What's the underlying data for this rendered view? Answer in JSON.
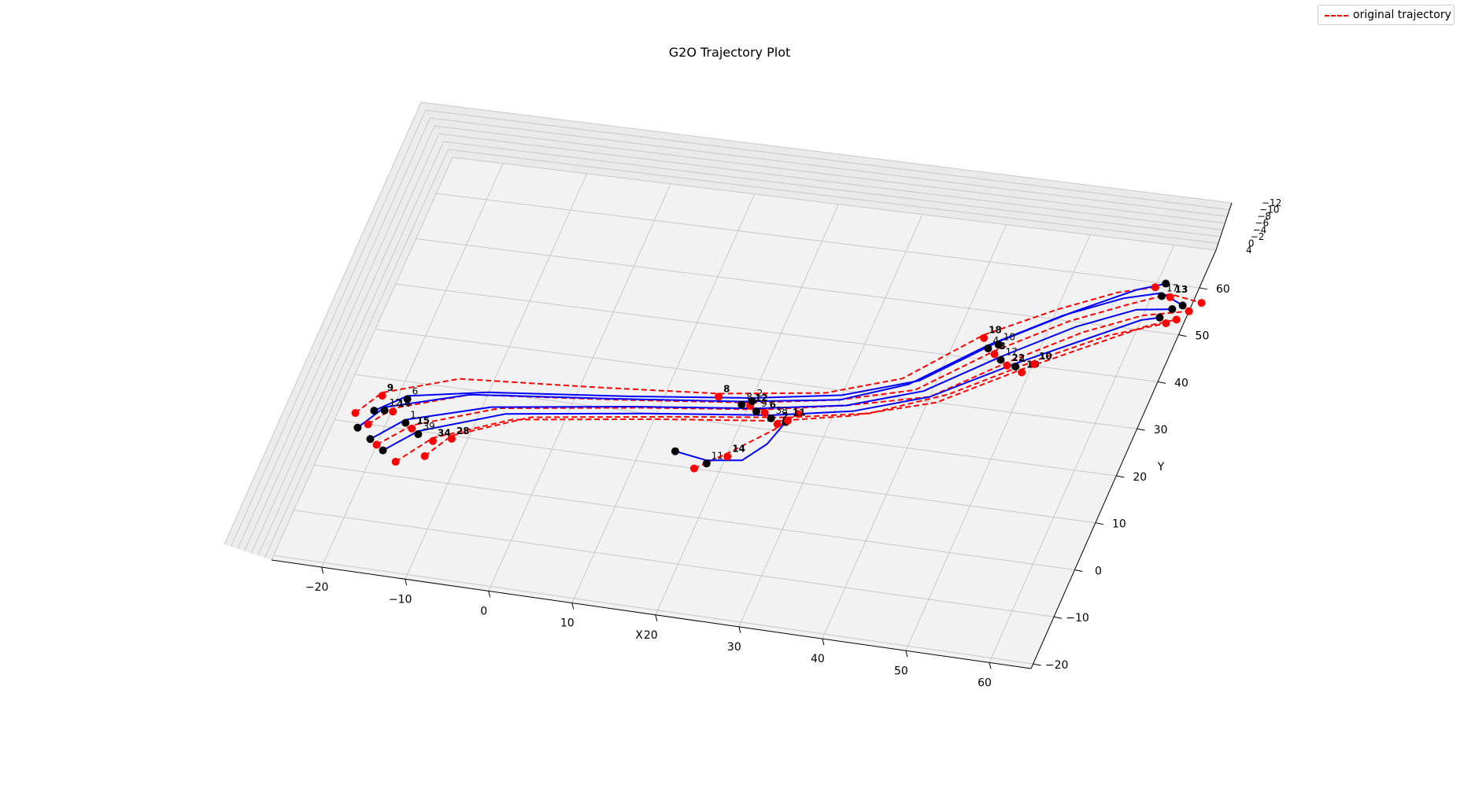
{
  "chart_data": {
    "type": "line",
    "title": "G2O Trajectory Plot",
    "xlabel": "X",
    "ylabel": "Y",
    "zlabel": "",
    "x_ticks": [
      "−20",
      "−10",
      "0",
      "10",
      "20",
      "30",
      "40",
      "50",
      "60"
    ],
    "y_ticks": [
      "−20",
      "−10",
      "0",
      "10",
      "20",
      "30",
      "40",
      "50",
      "60"
    ],
    "z_ticks": [
      "4",
      "0",
      "−2",
      "−4",
      "−6",
      "−8",
      "−10",
      "−12"
    ],
    "xlim": [
      -26,
      65
    ],
    "ylim": [
      -21,
      68
    ],
    "grid": true,
    "legend": {
      "position": "top-right",
      "entries": [
        "original trajectory"
      ]
    },
    "colors": {
      "original": "#ff0000",
      "optimized": "#0000ff",
      "optimized_marker": "#000000"
    },
    "series": [
      {
        "name": "original trajectory",
        "style": "dashed",
        "color": "#ff0000",
        "trajectories": [
          [
            [
              -22,
              10
            ],
            [
              -20,
              14
            ],
            [
              -12,
              19
            ],
            [
              5,
              22
            ],
            [
              20,
              25
            ],
            [
              30,
              28
            ],
            [
              38,
              32
            ],
            [
              45,
              42
            ],
            [
              52,
              50
            ],
            [
              58,
              55
            ],
            [
              62,
              58
            ],
            [
              66,
              57
            ]
          ],
          [
            [
              -20,
              6
            ],
            [
              -17,
              11
            ],
            [
              -8,
              17
            ],
            [
              8,
              21
            ],
            [
              22,
              24
            ],
            [
              31,
              27
            ],
            [
              40,
              31
            ],
            [
              47,
              40
            ],
            [
              54,
              48
            ],
            [
              60,
              53
            ],
            [
              65,
              55
            ]
          ],
          [
            [
              -17,
              3
            ],
            [
              -14,
              9
            ],
            [
              -6,
              15
            ],
            [
              10,
              19
            ],
            [
              24,
              22
            ],
            [
              32,
              25
            ],
            [
              41,
              30
            ],
            [
              49,
              39
            ],
            [
              56,
              46
            ],
            [
              61,
              51
            ],
            [
              64,
              53
            ]
          ],
          [
            [
              -24,
              12
            ],
            [
              -22,
              17
            ],
            [
              -14,
              22
            ],
            [
              2,
              24
            ],
            [
              16,
              26
            ],
            [
              28,
              29
            ],
            [
              36,
              34
            ],
            [
              43,
              45
            ],
            [
              50,
              52
            ],
            [
              56,
              57
            ],
            [
              60,
              59
            ]
          ],
          [
            [
              -14,
              5
            ],
            [
              -12,
              10
            ],
            [
              -4,
              16
            ],
            [
              12,
              20
            ],
            [
              25,
              23
            ],
            [
              34,
              26
            ],
            [
              42,
              32
            ],
            [
              50,
              41
            ],
            [
              57,
              48
            ],
            [
              63,
              52
            ]
          ],
          [
            [
              17,
              10
            ],
            [
              20,
              14
            ],
            [
              24,
              20
            ],
            [
              26,
              24
            ]
          ]
        ]
      },
      {
        "name": "",
        "style": "solid",
        "color": "#0000ff",
        "trajectories": [
          [
            [
              -23,
              9
            ],
            [
              -21,
              14
            ],
            [
              -12,
              19
            ],
            [
              4,
              22
            ],
            [
              19,
              25
            ],
            [
              30,
              28
            ],
            [
              37,
              33
            ],
            [
              44,
              43
            ],
            [
              51,
              51
            ],
            [
              57,
              56
            ],
            [
              61,
              58
            ],
            [
              64,
              56
            ]
          ],
          [
            [
              -21,
              7
            ],
            [
              -18,
              12
            ],
            [
              -9,
              17
            ],
            [
              7,
              21
            ],
            [
              21,
              24
            ],
            [
              31,
              27
            ],
            [
              39,
              32
            ],
            [
              46,
              41
            ],
            [
              53,
              49
            ],
            [
              59,
              54
            ],
            [
              63,
              55
            ]
          ],
          [
            [
              -19,
              5
            ],
            [
              -16,
              10
            ],
            [
              -7,
              16
            ],
            [
              9,
              20
            ],
            [
              23,
              23
            ],
            [
              32,
              26
            ],
            [
              40,
              31
            ],
            [
              48,
              40
            ],
            [
              55,
              47
            ],
            [
              60,
              52
            ],
            [
              62,
              53
            ]
          ],
          [
            [
              -22,
              13
            ],
            [
              -19,
              17
            ],
            [
              -10,
              20
            ],
            [
              6,
              23
            ],
            [
              20,
              26
            ],
            [
              30,
              29
            ],
            [
              38,
              34
            ],
            [
              45,
              44
            ],
            [
              52,
              52
            ],
            [
              58,
              58
            ],
            [
              61,
              60
            ]
          ],
          [
            [
              14,
              13
            ],
            [
              18,
              12
            ],
            [
              22,
              13
            ],
            [
              24,
              17
            ],
            [
              25,
              22
            ]
          ]
        ]
      }
    ],
    "point_labels": [
      "14",
      "12",
      "3",
      "13",
      "15",
      "6",
      "22",
      "34",
      "2",
      "19",
      "9",
      "8",
      "18",
      "28",
      "11",
      "10",
      "14",
      "12",
      "8",
      "4",
      "17",
      "1",
      "9",
      "17",
      "39",
      "38",
      "1",
      "6",
      "2",
      "10",
      "11",
      "29",
      "3"
    ]
  }
}
